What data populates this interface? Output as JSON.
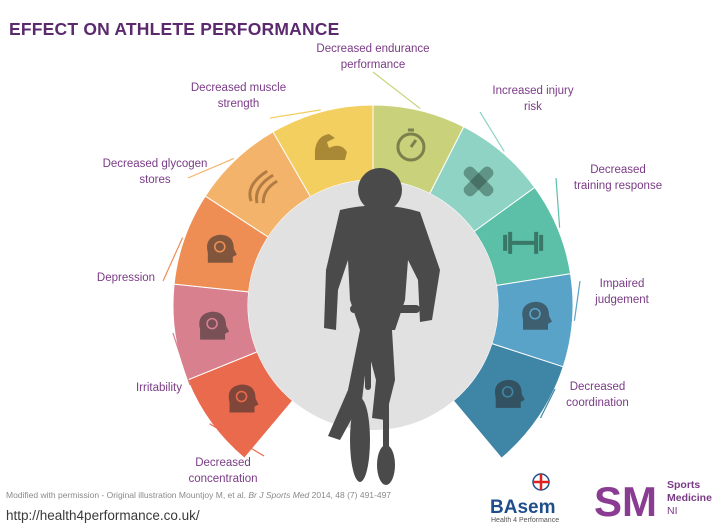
{
  "title": "EFFECT ON ATHLETE PERFORMANCE",
  "labels": {
    "endurance": "Decreased endurance performance",
    "muscle": "Decreased muscle strength",
    "injury": "Increased injury risk",
    "glycogen": "Decreased glycogen stores",
    "training": "Decreased training response",
    "depression": "Depression",
    "judgement": "Impaired judgement",
    "irritability": "Irritability",
    "coordination": "Decreased coordination",
    "concentration": "Decreased concentration"
  },
  "label_lines": {
    "endurance": [
      "Decreased endurance",
      "performance"
    ],
    "muscle": [
      "Decreased muscle",
      "strength"
    ],
    "injury": [
      "Increased injury",
      "risk"
    ],
    "glycogen": [
      "Decreased glycogen",
      "stores"
    ],
    "training": [
      "Decreased",
      "training response"
    ],
    "depression": [
      "Depression"
    ],
    "judgement": [
      "Impaired",
      "judgement"
    ],
    "irritability": [
      "Irritability"
    ],
    "coordination": [
      "Decreased",
      "coordination"
    ],
    "concentration": [
      "Decreased",
      "concentration"
    ]
  },
  "credit": {
    "prefix": "Modified with permission - Original illustration Mountjoy M, et al. ",
    "journal": "Br J Sports Med",
    "suffix": " 2014, 48 (7) 491-497"
  },
  "url": "http://health4performance.co.uk/",
  "logos": {
    "basem_word": "BAsem",
    "basem_sub": "Health 4 Performance",
    "smni_mark": "SM",
    "smni_lines": [
      "Sports",
      "Medicine",
      "NI"
    ]
  },
  "segments": [
    {
      "id": "endurance",
      "color": "#c9d27a",
      "icon": "stopwatch-icon"
    },
    {
      "id": "injury",
      "color": "#8fd3c4",
      "icon": "bandage-cross-icon"
    },
    {
      "id": "training",
      "color": "#5cc0a8",
      "icon": "dumbbell-icon"
    },
    {
      "id": "judgement",
      "color": "#5aa3c8",
      "icon": "head-question-icon"
    },
    {
      "id": "coordination",
      "color": "#3f86a6",
      "icon": "head-network-icon"
    },
    {
      "id": "concentration",
      "color": "#ea6a4e",
      "icon": "head-eye-icon"
    },
    {
      "id": "irritability",
      "color": "#d9808f",
      "icon": "head-spark-icon"
    },
    {
      "id": "depression",
      "color": "#ee8e55",
      "icon": "head-cloud-icon"
    },
    {
      "id": "glycogen",
      "color": "#f4b36a",
      "icon": "muscle-fiber-icon"
    },
    {
      "id": "muscle",
      "color": "#f2cf5f",
      "icon": "flexed-arm-icon"
    }
  ]
}
